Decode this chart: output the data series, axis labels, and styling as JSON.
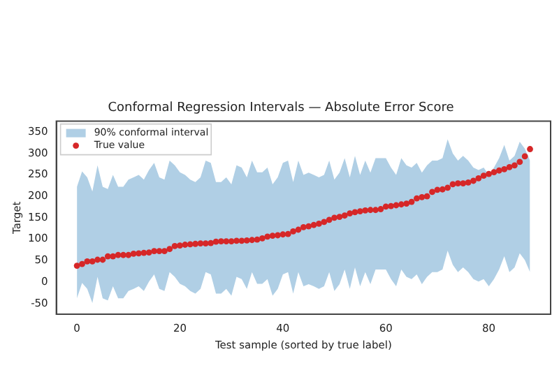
{
  "chart_data": {
    "type": "area",
    "title": "Conformal Regression Intervals — Absolute Error Score",
    "xlabel": "Test sample (sorted by true label)",
    "ylabel": "Target",
    "x": [
      0,
      1,
      2,
      3,
      4,
      5,
      6,
      7,
      8,
      9,
      10,
      11,
      12,
      13,
      14,
      15,
      16,
      17,
      18,
      19,
      20,
      21,
      22,
      23,
      24,
      25,
      26,
      27,
      28,
      29,
      30,
      31,
      32,
      33,
      34,
      35,
      36,
      37,
      38,
      39,
      40,
      41,
      42,
      43,
      44,
      45,
      46,
      47,
      48,
      49,
      50,
      51,
      52,
      53,
      54,
      55,
      56,
      57,
      58,
      59,
      60,
      61,
      62,
      63,
      64,
      65,
      66,
      67,
      68,
      69,
      70,
      71,
      72,
      73,
      74,
      75,
      76,
      77,
      78,
      79,
      80,
      81,
      82,
      83,
      84,
      85,
      86,
      87,
      88
    ],
    "series": [
      {
        "name": "90% conformal interval",
        "color": "#b0cfe5",
        "values": [
          null,
          null,
          null,
          null,
          null,
          null,
          null,
          null,
          null,
          null,
          null,
          null,
          null,
          null,
          null,
          null,
          null,
          null,
          null,
          null,
          null,
          null,
          null,
          null,
          null,
          null,
          null,
          null,
          null,
          null,
          null,
          null,
          null,
          null,
          null,
          null,
          null,
          null,
          null,
          null,
          null,
          null,
          null,
          null,
          null,
          null,
          null,
          null,
          null,
          null,
          null,
          null,
          null,
          null,
          null,
          null,
          null,
          null,
          null,
          null,
          null,
          null,
          null,
          null,
          null,
          null,
          null,
          null,
          null,
          null,
          null,
          null,
          null,
          null,
          null,
          null,
          null,
          null,
          null,
          null,
          null,
          null,
          null,
          null,
          null,
          null,
          null,
          null,
          null
        ],
        "upper": [
          222,
          258,
          244,
          211,
          272,
          222,
          217,
          250,
          222,
          222,
          239,
          244,
          250,
          239,
          261,
          278,
          244,
          239,
          283,
          272,
          256,
          250,
          239,
          233,
          244,
          283,
          278,
          233,
          233,
          244,
          228,
          272,
          267,
          244,
          283,
          256,
          256,
          267,
          228,
          244,
          278,
          283,
          233,
          283,
          250,
          255,
          250,
          244,
          250,
          283,
          239,
          255,
          289,
          244,
          294,
          250,
          283,
          255,
          289,
          289,
          289,
          267,
          250,
          289,
          272,
          267,
          278,
          255,
          272,
          283,
          283,
          289,
          333,
          300,
          283,
          294,
          283,
          267,
          261,
          267,
          250,
          267,
          289,
          320,
          283,
          294,
          327,
          311,
          283
        ],
        "lower": [
          -38,
          -2,
          -16,
          -49,
          12,
          -38,
          -43,
          -10,
          -38,
          -38,
          -21,
          -16,
          -10,
          -21,
          1,
          18,
          -16,
          -21,
          23,
          12,
          -4,
          -10,
          -21,
          -27,
          -16,
          23,
          18,
          -27,
          -27,
          -16,
          -32,
          12,
          7,
          -16,
          23,
          -4,
          -4,
          7,
          -32,
          -16,
          18,
          23,
          -27,
          23,
          -10,
          -5,
          -10,
          -16,
          -10,
          23,
          -21,
          -5,
          29,
          -16,
          34,
          -10,
          23,
          -5,
          29,
          29,
          29,
          7,
          -10,
          29,
          12,
          7,
          18,
          -5,
          12,
          23,
          23,
          29,
          73,
          40,
          23,
          34,
          23,
          7,
          1,
          7,
          -10,
          7,
          29,
          60,
          23,
          34,
          67,
          51,
          23
        ]
      },
      {
        "name": "True value",
        "type": "scatter",
        "color": "#d62728",
        "values": [
          38,
          42,
          48,
          48,
          52,
          52,
          60,
          60,
          63,
          63,
          63,
          66,
          67,
          68,
          69,
          72,
          72,
          72,
          77,
          84,
          85,
          87,
          88,
          89,
          90,
          90,
          91,
          94,
          95,
          95,
          95,
          96,
          96,
          97,
          98,
          99,
          102,
          106,
          108,
          109,
          111,
          112,
          118,
          122,
          128,
          130,
          133,
          136,
          140,
          145,
          150,
          152,
          155,
          160,
          163,
          165,
          167,
          168,
          168,
          170,
          176,
          177,
          179,
          181,
          183,
          187,
          195,
          198,
          200,
          210,
          215,
          216,
          220,
          228,
          230,
          230,
          232,
          236,
          242,
          248,
          252,
          256,
          260,
          263,
          268,
          272,
          280,
          293,
          310
        ]
      }
    ],
    "xlim": [
      -4,
      92
    ],
    "xticks": [
      0,
      20,
      40,
      60,
      80
    ],
    "ylim": [
      -75,
      375
    ],
    "yticks": [
      -50,
      0,
      50,
      100,
      150,
      200,
      250,
      300,
      350
    ],
    "legend": "top left",
    "grid": false,
    "marker": "circle"
  }
}
